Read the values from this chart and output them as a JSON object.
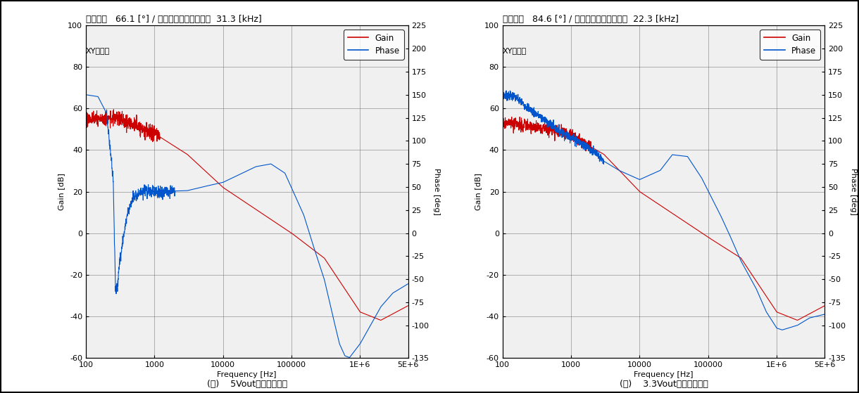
{
  "chart_A": {
    "title": "位相余裕   66.1 [°] / クロスオーバー周波数  31.3 [kHz]",
    "xy_label": "XYグラフ",
    "caption": "(Ａ)    5Vout位相余裕特性"
  },
  "chart_B": {
    "title": "位相余裕   84.6 [°] / クロスオーバー周波数  22.3 [kHz]",
    "xy_label": "XYグラフ",
    "caption": "(Ｂ)    3.3Vout位相余裕特性"
  },
  "gain_color": "#cc0000",
  "phase_color": "#0055cc",
  "bg_color": "#ffffff",
  "plot_bg_color": "#f0f0f0",
  "grid_color": "#555555",
  "freq_min": 100,
  "freq_max": 5000000,
  "gain_ylim": [
    -60,
    100
  ],
  "phase_ylim": [
    -135,
    225
  ],
  "gain_yticks": [
    -60,
    -40,
    -20,
    0,
    20,
    40,
    60,
    80,
    100
  ],
  "phase_yticks": [
    -135,
    -100,
    -75,
    -50,
    -25,
    0,
    25,
    50,
    75,
    100,
    125,
    150,
    175,
    200,
    225
  ],
  "freq_xticks": [
    100,
    1000,
    10000,
    100000,
    1000000,
    5000000
  ],
  "freq_xticklabels": [
    "100",
    "1000",
    "10000",
    "100000",
    "1E+6",
    "5E+6"
  ]
}
